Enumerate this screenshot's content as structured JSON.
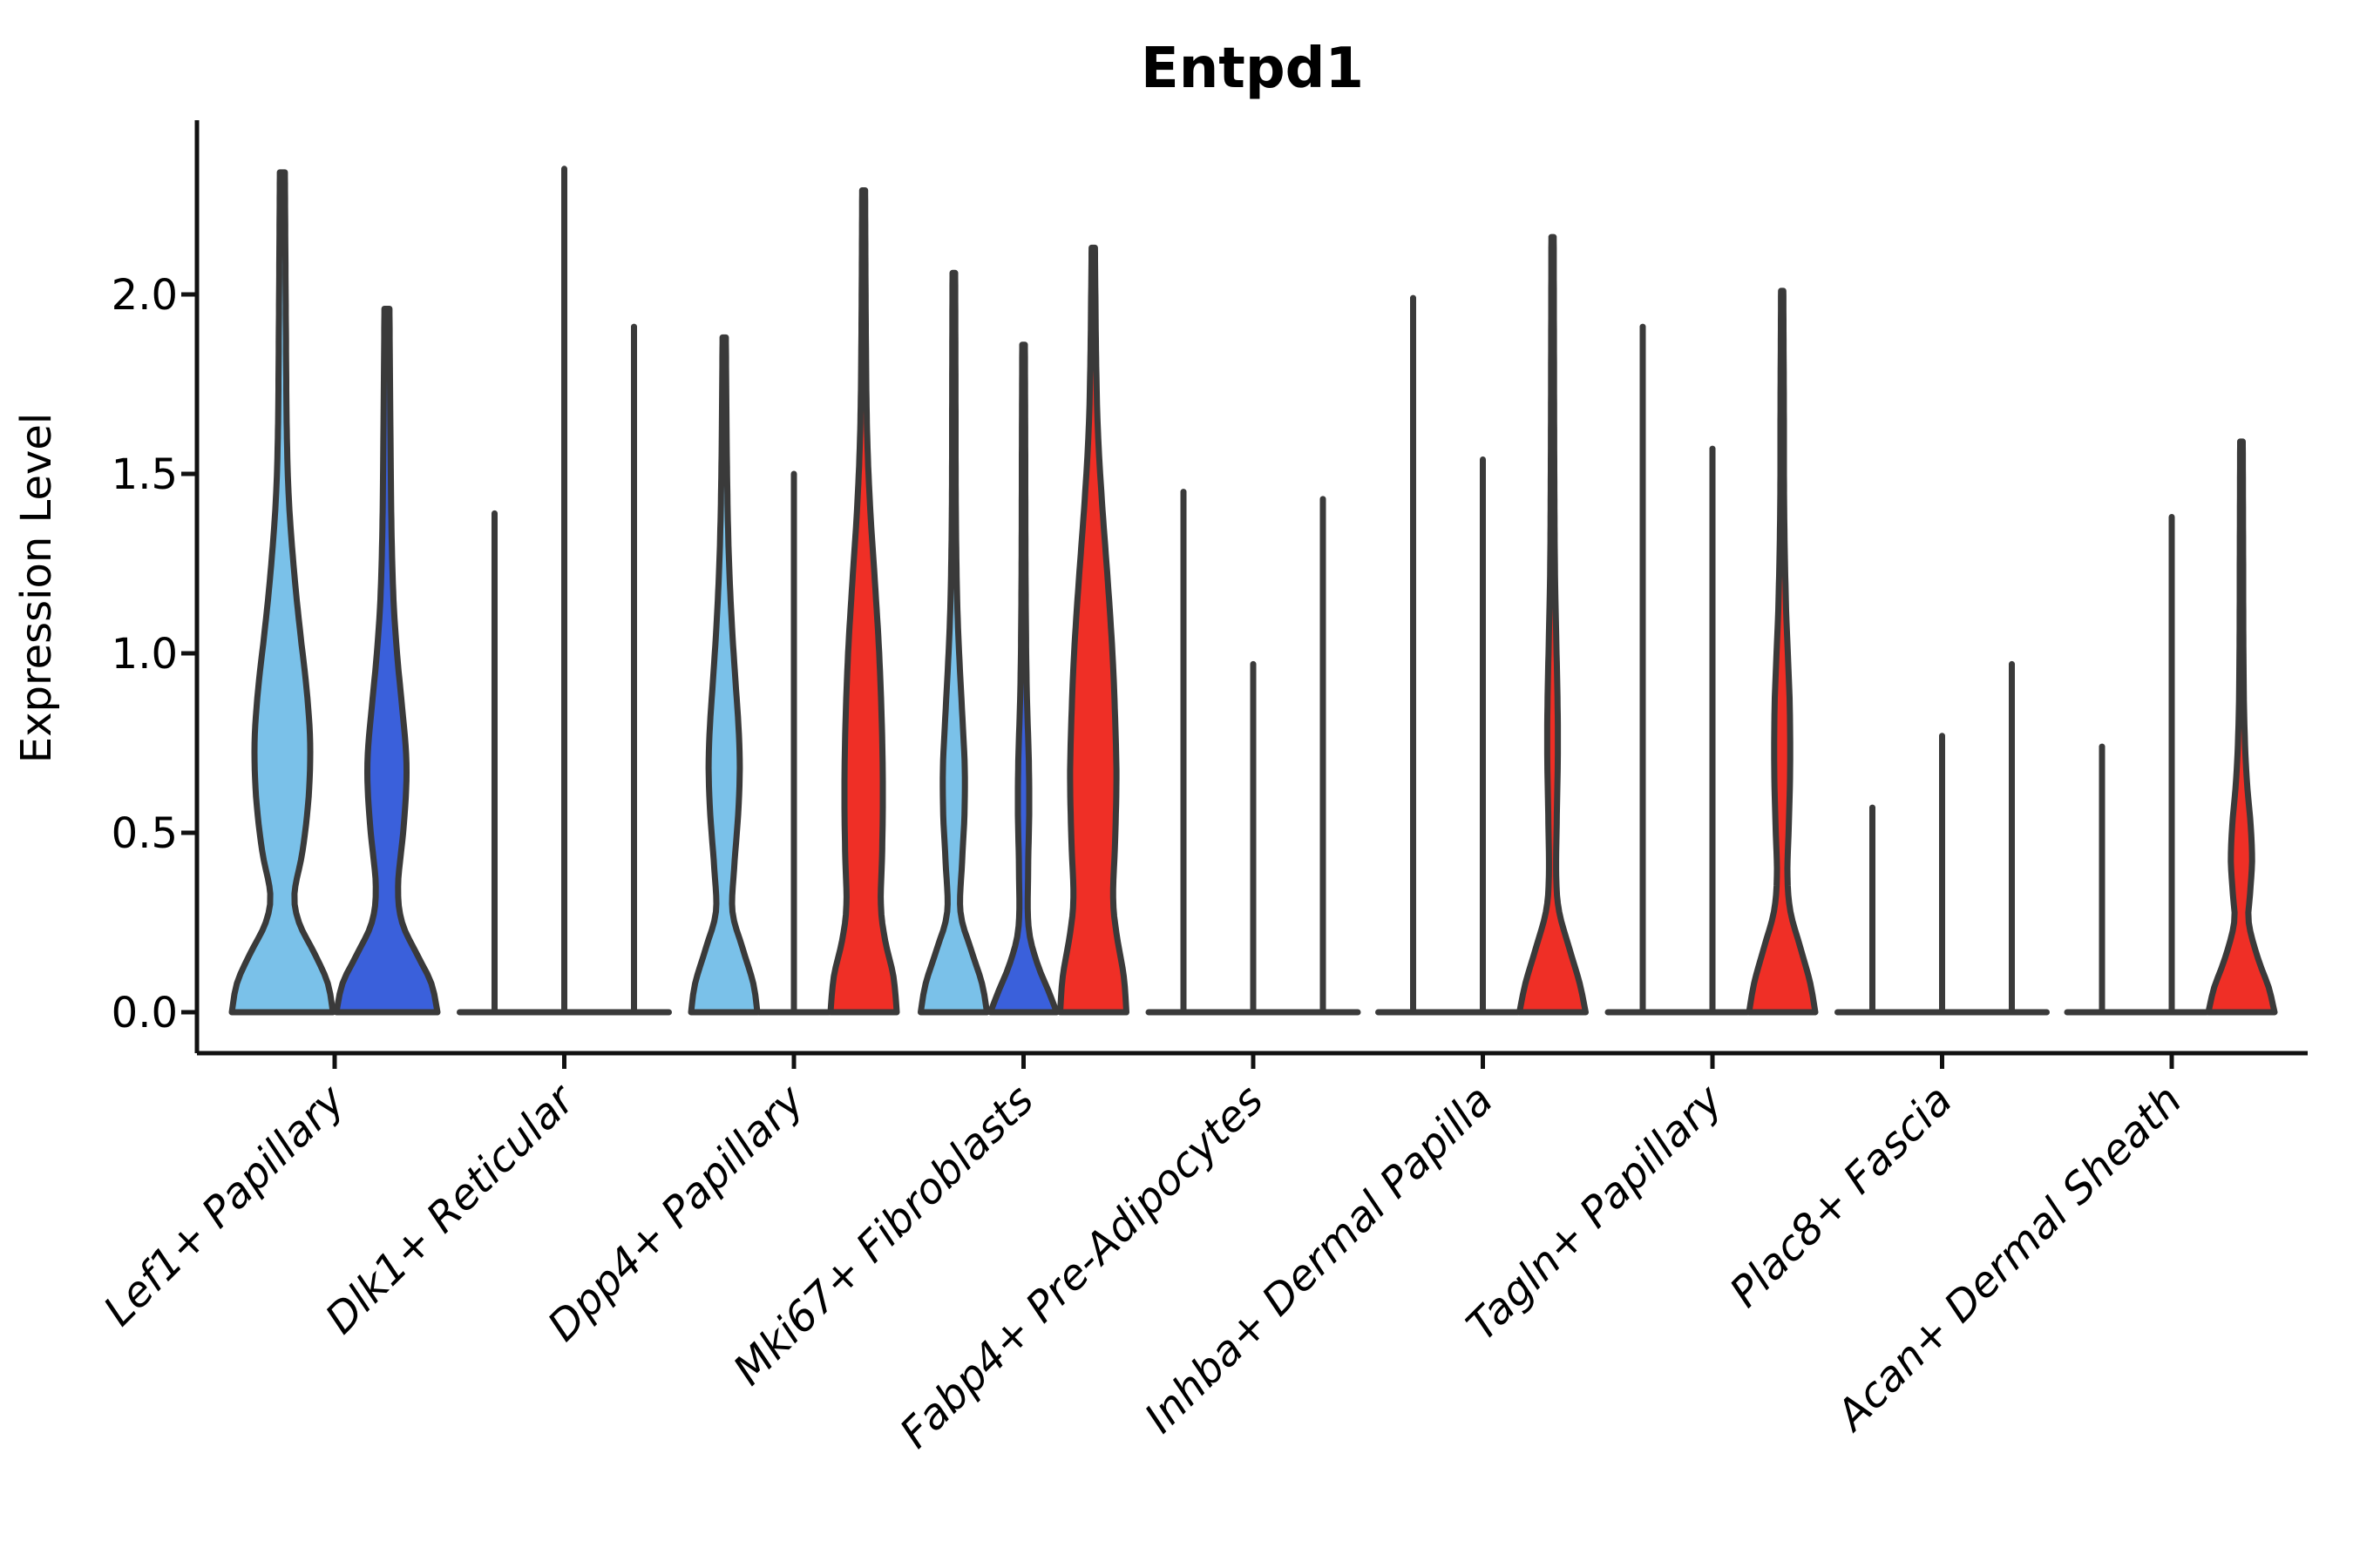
{
  "figure": {
    "title": "Entpd1",
    "background": "#ffffff"
  },
  "chart_data": {
    "type": "violin",
    "title": "Entpd1",
    "xlabel": "",
    "ylabel": "Expression Level",
    "y_axis": {
      "ticks": [
        0.0,
        0.5,
        1.0,
        1.5,
        2.0
      ],
      "tick_labels": [
        "0.0",
        "0.5",
        "1.0",
        "1.5",
        "2.0"
      ],
      "range": [
        -0.11,
        2.49
      ],
      "grid": false
    },
    "legend": "none",
    "series": [
      {
        "id": "series-1",
        "color": "#7AC1E9"
      },
      {
        "id": "series-2",
        "color": "#3A60DB"
      },
      {
        "id": "series-3",
        "color": "#EF2F26"
      }
    ],
    "stroke_color": "#3A3A3A",
    "axis_color": "#111111",
    "text_color": "#000000",
    "groups": [
      {
        "label": "Lef1+ Papillary",
        "violins": [
          {
            "series": 0,
            "style": "violin",
            "max": 2.34,
            "profile": [
              [
                0,
                1
              ],
              [
                0.08,
                0.9
              ],
              [
                0.16,
                0.65
              ],
              [
                0.25,
                0.33
              ],
              [
                0.33,
                0.24
              ],
              [
                0.45,
                0.4
              ],
              [
                0.6,
                0.52
              ],
              [
                0.75,
                0.55
              ],
              [
                0.9,
                0.48
              ],
              [
                1.05,
                0.36
              ],
              [
                1.2,
                0.25
              ],
              [
                1.4,
                0.14
              ],
              [
                1.6,
                0.09
              ],
              [
                1.9,
                0.07
              ],
              [
                2.34,
                0.05
              ]
            ]
          },
          {
            "series": 1,
            "style": "violin",
            "max": 1.96,
            "profile": [
              [
                0,
                1
              ],
              [
                0.08,
                0.88
              ],
              [
                0.16,
                0.6
              ],
              [
                0.25,
                0.3
              ],
              [
                0.35,
                0.22
              ],
              [
                0.5,
                0.32
              ],
              [
                0.62,
                0.38
              ],
              [
                0.72,
                0.38
              ],
              [
                0.85,
                0.3
              ],
              [
                1.0,
                0.2
              ],
              [
                1.15,
                0.13
              ],
              [
                1.35,
                0.09
              ],
              [
                1.6,
                0.07
              ],
              [
                1.96,
                0.05
              ]
            ]
          }
        ]
      },
      {
        "label": "Dlk1+ Reticular",
        "violins": [
          {
            "series": 0,
            "style": "spike",
            "max": 1.39
          },
          {
            "series": 1,
            "style": "spike",
            "max": 2.35
          },
          {
            "series": 2,
            "style": "spike",
            "max": 1.91
          }
        ]
      },
      {
        "label": "Dpp4+ Papillary",
        "violins": [
          {
            "series": 0,
            "style": "violin",
            "max": 1.88,
            "profile": [
              [
                0,
                1
              ],
              [
                0.08,
                0.88
              ],
              [
                0.18,
                0.55
              ],
              [
                0.28,
                0.25
              ],
              [
                0.4,
                0.3
              ],
              [
                0.55,
                0.42
              ],
              [
                0.68,
                0.47
              ],
              [
                0.8,
                0.43
              ],
              [
                0.95,
                0.32
              ],
              [
                1.1,
                0.22
              ],
              [
                1.3,
                0.13
              ],
              [
                1.55,
                0.08
              ],
              [
                1.88,
                0.05
              ]
            ]
          },
          {
            "series": 1,
            "style": "spike",
            "max": 1.5
          },
          {
            "series": 2,
            "style": "violin",
            "max": 2.29,
            "profile": [
              [
                0,
                1
              ],
              [
                0.1,
                0.9
              ],
              [
                0.2,
                0.65
              ],
              [
                0.3,
                0.52
              ],
              [
                0.45,
                0.56
              ],
              [
                0.62,
                0.58
              ],
              [
                0.8,
                0.55
              ],
              [
                1.0,
                0.47
              ],
              [
                1.2,
                0.34
              ],
              [
                1.4,
                0.2
              ],
              [
                1.6,
                0.11
              ],
              [
                1.85,
                0.07
              ],
              [
                2.29,
                0.045
              ]
            ]
          }
        ]
      },
      {
        "label": "Mki67+ Fibroblasts",
        "violins": [
          {
            "series": 0,
            "style": "violin",
            "max": 2.06,
            "profile": [
              [
                0,
                1
              ],
              [
                0.08,
                0.85
              ],
              [
                0.18,
                0.5
              ],
              [
                0.28,
                0.2
              ],
              [
                0.42,
                0.25
              ],
              [
                0.55,
                0.32
              ],
              [
                0.68,
                0.33
              ],
              [
                0.82,
                0.26
              ],
              [
                0.98,
                0.17
              ],
              [
                1.15,
                0.1
              ],
              [
                1.4,
                0.06
              ],
              [
                1.75,
                0.05
              ],
              [
                2.06,
                0.04
              ]
            ]
          },
          {
            "series": 1,
            "style": "violin",
            "max": 1.86,
            "profile": [
              [
                0,
                1
              ],
              [
                0.06,
                0.75
              ],
              [
                0.14,
                0.4
              ],
              [
                0.24,
                0.15
              ],
              [
                0.4,
                0.14
              ],
              [
                0.55,
                0.17
              ],
              [
                0.7,
                0.16
              ],
              [
                0.85,
                0.11
              ],
              [
                1.0,
                0.08
              ],
              [
                1.25,
                0.06
              ],
              [
                1.6,
                0.05
              ],
              [
                1.86,
                0.04
              ]
            ]
          },
          {
            "series": 2,
            "style": "violin",
            "max": 2.13,
            "profile": [
              [
                0,
                1
              ],
              [
                0.1,
                0.92
              ],
              [
                0.22,
                0.7
              ],
              [
                0.32,
                0.6
              ],
              [
                0.48,
                0.66
              ],
              [
                0.65,
                0.7
              ],
              [
                0.82,
                0.66
              ],
              [
                1.0,
                0.58
              ],
              [
                1.2,
                0.44
              ],
              [
                1.4,
                0.28
              ],
              [
                1.6,
                0.15
              ],
              [
                1.8,
                0.09
              ],
              [
                2.13,
                0.05
              ]
            ]
          }
        ]
      },
      {
        "label": "Fabp4+ Pre-Adipocytes",
        "violins": [
          {
            "series": 0,
            "style": "spike",
            "max": 1.45
          },
          {
            "series": 1,
            "style": "spike",
            "max": 0.97
          },
          {
            "series": 2,
            "style": "spike",
            "max": 1.43
          }
        ]
      },
      {
        "label": "Inhba+ Dermal Papilla",
        "violins": [
          {
            "series": 0,
            "style": "spike",
            "max": 1.99
          },
          {
            "series": 1,
            "style": "spike",
            "max": 1.54
          },
          {
            "series": 2,
            "style": "violin",
            "max": 2.16,
            "profile": [
              [
                0,
                1
              ],
              [
                0.08,
                0.82
              ],
              [
                0.18,
                0.5
              ],
              [
                0.28,
                0.2
              ],
              [
                0.38,
                0.11
              ],
              [
                0.55,
                0.13
              ],
              [
                0.72,
                0.16
              ],
              [
                0.88,
                0.15
              ],
              [
                1.05,
                0.11
              ],
              [
                1.25,
                0.07
              ],
              [
                1.6,
                0.05
              ],
              [
                2.16,
                0.035
              ]
            ]
          }
        ]
      },
      {
        "label": "Tagln+ Papillary",
        "violins": [
          {
            "series": 0,
            "style": "spike",
            "max": 1.91
          },
          {
            "series": 1,
            "style": "spike",
            "max": 1.57
          },
          {
            "series": 2,
            "style": "violin",
            "max": 2.01,
            "profile": [
              [
                0,
                1
              ],
              [
                0.08,
                0.85
              ],
              [
                0.18,
                0.55
              ],
              [
                0.28,
                0.25
              ],
              [
                0.38,
                0.16
              ],
              [
                0.52,
                0.2
              ],
              [
                0.68,
                0.24
              ],
              [
                0.85,
                0.23
              ],
              [
                1.0,
                0.17
              ],
              [
                1.15,
                0.11
              ],
              [
                1.4,
                0.06
              ],
              [
                1.7,
                0.05
              ],
              [
                2.01,
                0.035
              ]
            ]
          }
        ]
      },
      {
        "label": "Plac8+ Fascia",
        "violins": [
          {
            "series": 0,
            "style": "spike",
            "max": 0.57
          },
          {
            "series": 1,
            "style": "spike",
            "max": 0.77
          },
          {
            "series": 2,
            "style": "spike",
            "max": 0.97
          }
        ]
      },
      {
        "label": "Acan+ Dermal Sheath",
        "violins": [
          {
            "series": 0,
            "style": "spike",
            "max": 0.74
          },
          {
            "series": 1,
            "style": "spike",
            "max": 1.38
          },
          {
            "series": 2,
            "style": "violin",
            "max": 1.59,
            "profile": [
              [
                0,
                1
              ],
              [
                0.07,
                0.82
              ],
              [
                0.15,
                0.5
              ],
              [
                0.25,
                0.22
              ],
              [
                0.33,
                0.26
              ],
              [
                0.42,
                0.32
              ],
              [
                0.52,
                0.28
              ],
              [
                0.65,
                0.16
              ],
              [
                0.8,
                0.09
              ],
              [
                1.0,
                0.06
              ],
              [
                1.3,
                0.05
              ],
              [
                1.59,
                0.04
              ]
            ]
          }
        ]
      }
    ]
  }
}
